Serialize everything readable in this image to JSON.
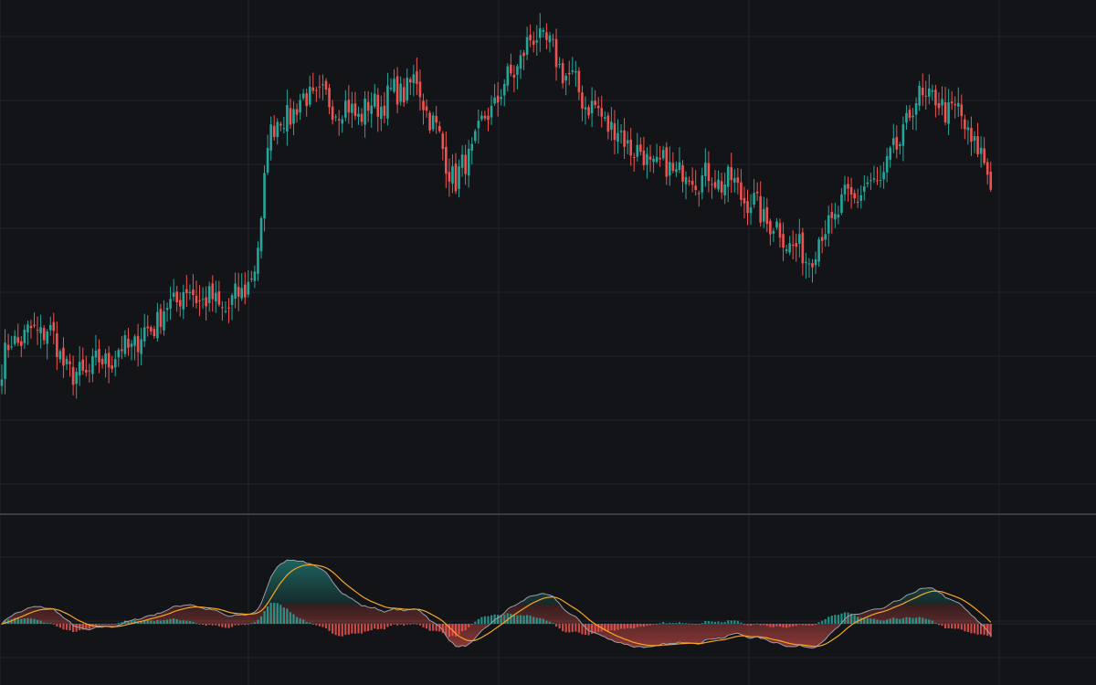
{
  "theme": {
    "background": "#131417",
    "grid": "#23252b",
    "separator": "#3a3c42",
    "up_color": "#26a69a",
    "down_color": "#ef5350",
    "signal_color": "#f5a623",
    "macd_line_color": "#9aa0a6"
  },
  "chart_data": [
    {
      "type": "candlestick",
      "panel": "price",
      "grid": true,
      "x_start_index": 0,
      "ylim": [
        95,
        176
      ],
      "key_points": [
        {
          "i": 0,
          "close": 118
        },
        {
          "i": 3,
          "close": 122
        },
        {
          "i": 14,
          "close": 124
        },
        {
          "i": 22,
          "close": 116
        },
        {
          "i": 42,
          "close": 122
        },
        {
          "i": 56,
          "close": 130
        },
        {
          "i": 70,
          "close": 127
        },
        {
          "i": 78,
          "close": 133
        },
        {
          "i": 80,
          "close": 140
        },
        {
          "i": 82,
          "close": 155
        },
        {
          "i": 95,
          "close": 161
        },
        {
          "i": 110,
          "close": 158
        },
        {
          "i": 128,
          "close": 163
        },
        {
          "i": 140,
          "close": 147
        },
        {
          "i": 150,
          "close": 158
        },
        {
          "i": 165,
          "close": 171
        },
        {
          "i": 180,
          "close": 160
        },
        {
          "i": 200,
          "close": 150
        },
        {
          "i": 225,
          "close": 147
        },
        {
          "i": 248,
          "close": 135
        },
        {
          "i": 260,
          "close": 144
        },
        {
          "i": 272,
          "close": 148
        },
        {
          "i": 283,
          "close": 161
        },
        {
          "i": 295,
          "close": 158
        },
        {
          "i": 305,
          "close": 148
        }
      ],
      "candle_count": 306
    },
    {
      "type": "macd",
      "panel": "indicator",
      "grid": true,
      "series": [
        {
          "role": "histogram"
        },
        {
          "role": "macd"
        },
        {
          "role": "signal"
        }
      ],
      "ylim": [
        -1.1,
        1.1
      ],
      "zero_line": true
    }
  ]
}
